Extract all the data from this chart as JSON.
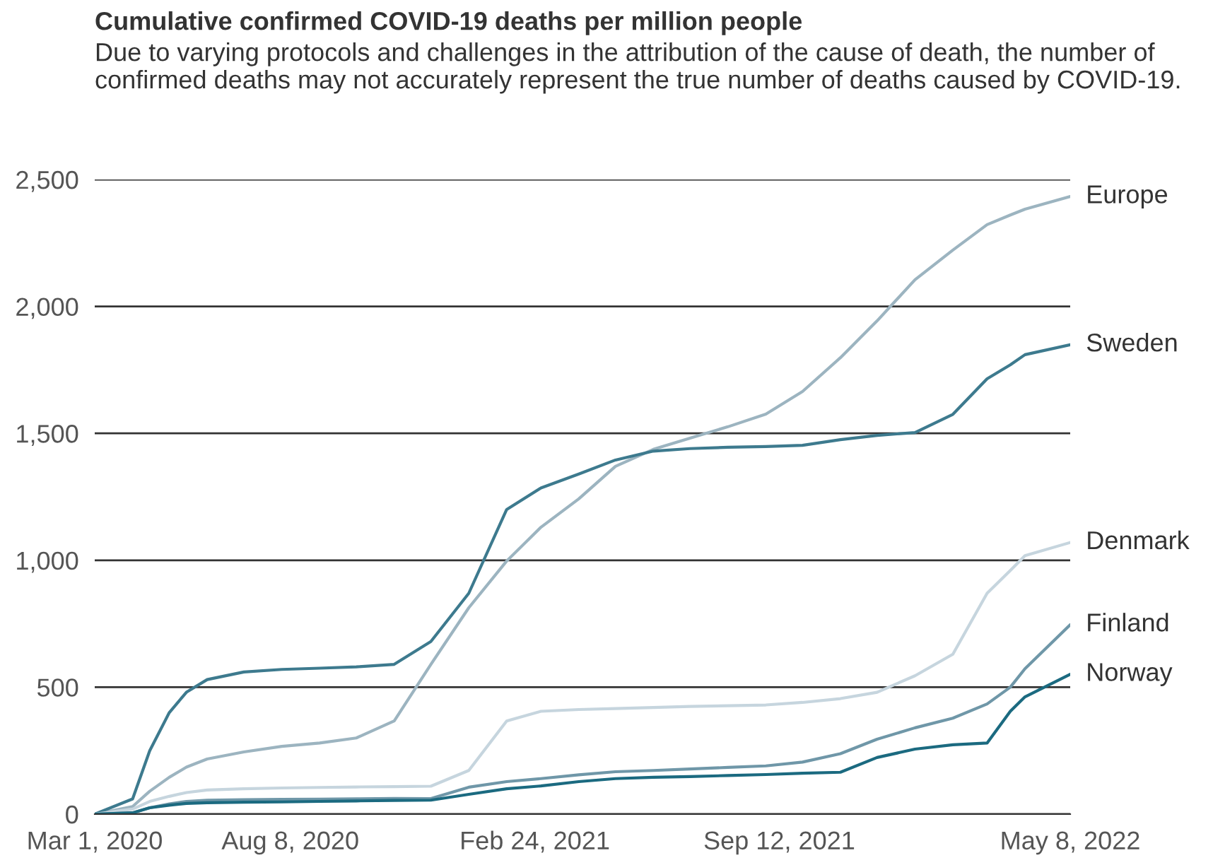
{
  "chart_data": {
    "type": "line",
    "title": "Cumulative confirmed COVID-19 deaths per million people",
    "subtitle": "Due to varying protocols and challenges in the attribution of the cause of death, the number of confirmed deaths may not accurately represent the true number of deaths caused by COVID-19.",
    "x": [
      "2020-03-01",
      "2020-04-01",
      "2020-04-15",
      "2020-05-01",
      "2020-05-15",
      "2020-06-01",
      "2020-07-01",
      "2020-08-01",
      "2020-09-01",
      "2020-10-01",
      "2020-11-01",
      "2020-12-01",
      "2021-01-01",
      "2021-02-01",
      "2021-03-01",
      "2021-04-01",
      "2021-05-01",
      "2021-06-01",
      "2021-07-01",
      "2021-08-01",
      "2021-09-01",
      "2021-10-01",
      "2021-11-01",
      "2021-12-01",
      "2022-01-01",
      "2022-02-01",
      "2022-03-01",
      "2022-03-20",
      "2022-04-01",
      "2022-05-08"
    ],
    "series": [
      {
        "name": "Europe",
        "color": "#9cb4c0",
        "values": [
          0,
          30,
          90,
          145,
          185,
          217,
          245,
          267,
          280,
          300,
          367,
          590,
          813,
          997,
          1130,
          1242,
          1370,
          1437,
          1481,
          1526,
          1576,
          1665,
          1798,
          1943,
          2105,
          2222,
          2322,
          2360,
          2383,
          2433
        ]
      },
      {
        "name": "Sweden",
        "color": "#3d7a8e",
        "values": [
          0,
          60,
          250,
          400,
          480,
          530,
          560,
          570,
          575,
          580,
          590,
          680,
          870,
          1200,
          1285,
          1340,
          1395,
          1430,
          1440,
          1445,
          1448,
          1453,
          1475,
          1492,
          1503,
          1575,
          1715,
          1770,
          1810,
          1849
        ]
      },
      {
        "name": "Denmark",
        "color": "#c6d5de",
        "values": [
          0,
          20,
          50,
          70,
          85,
          95,
          100,
          103,
          105,
          107,
          108,
          110,
          172,
          367,
          405,
          412,
          416,
          420,
          424,
          427,
          430,
          440,
          455,
          480,
          545,
          630,
          870,
          960,
          1018,
          1070
        ]
      },
      {
        "name": "Finland",
        "color": "#6f97a8",
        "values": [
          0,
          5,
          25,
          40,
          50,
          55,
          57,
          58,
          59,
          60,
          62,
          61,
          106,
          128,
          140,
          155,
          167,
          172,
          178,
          184,
          190,
          205,
          238,
          295,
          340,
          378,
          434,
          500,
          573,
          746
        ]
      },
      {
        "name": "Norway",
        "color": "#1b6a80",
        "values": [
          0,
          5,
          25,
          35,
          42,
          45,
          47,
          48,
          50,
          52,
          54,
          55,
          78,
          100,
          111,
          128,
          140,
          145,
          148,
          152,
          156,
          161,
          165,
          223,
          256,
          273,
          280,
          405,
          462,
          551
        ]
      }
    ],
    "xlim": [
      "2020-03-01",
      "2022-05-08"
    ],
    "xticks": [
      {
        "value": "2020-03-01",
        "label": "Mar 1, 2020"
      },
      {
        "value": "2020-08-08",
        "label": "Aug 8, 2020"
      },
      {
        "value": "2021-02-24",
        "label": "Feb 24, 2021"
      },
      {
        "value": "2021-09-12",
        "label": "Sep 12, 2021"
      },
      {
        "value": "2022-05-08",
        "label": "May 8, 2022"
      }
    ],
    "ylim": [
      0,
      2500
    ],
    "yticks": [
      0,
      {
        "value": 500,
        "label": "500"
      },
      {
        "value": 1000,
        "label": "1,000"
      },
      {
        "value": 1500,
        "label": "1,500"
      },
      {
        "value": 2000,
        "label": "2,000"
      },
      {
        "value": 2500,
        "label": "2,500"
      }
    ],
    "grid": "y",
    "legend": false,
    "line_style": "solid",
    "marker": "none"
  }
}
